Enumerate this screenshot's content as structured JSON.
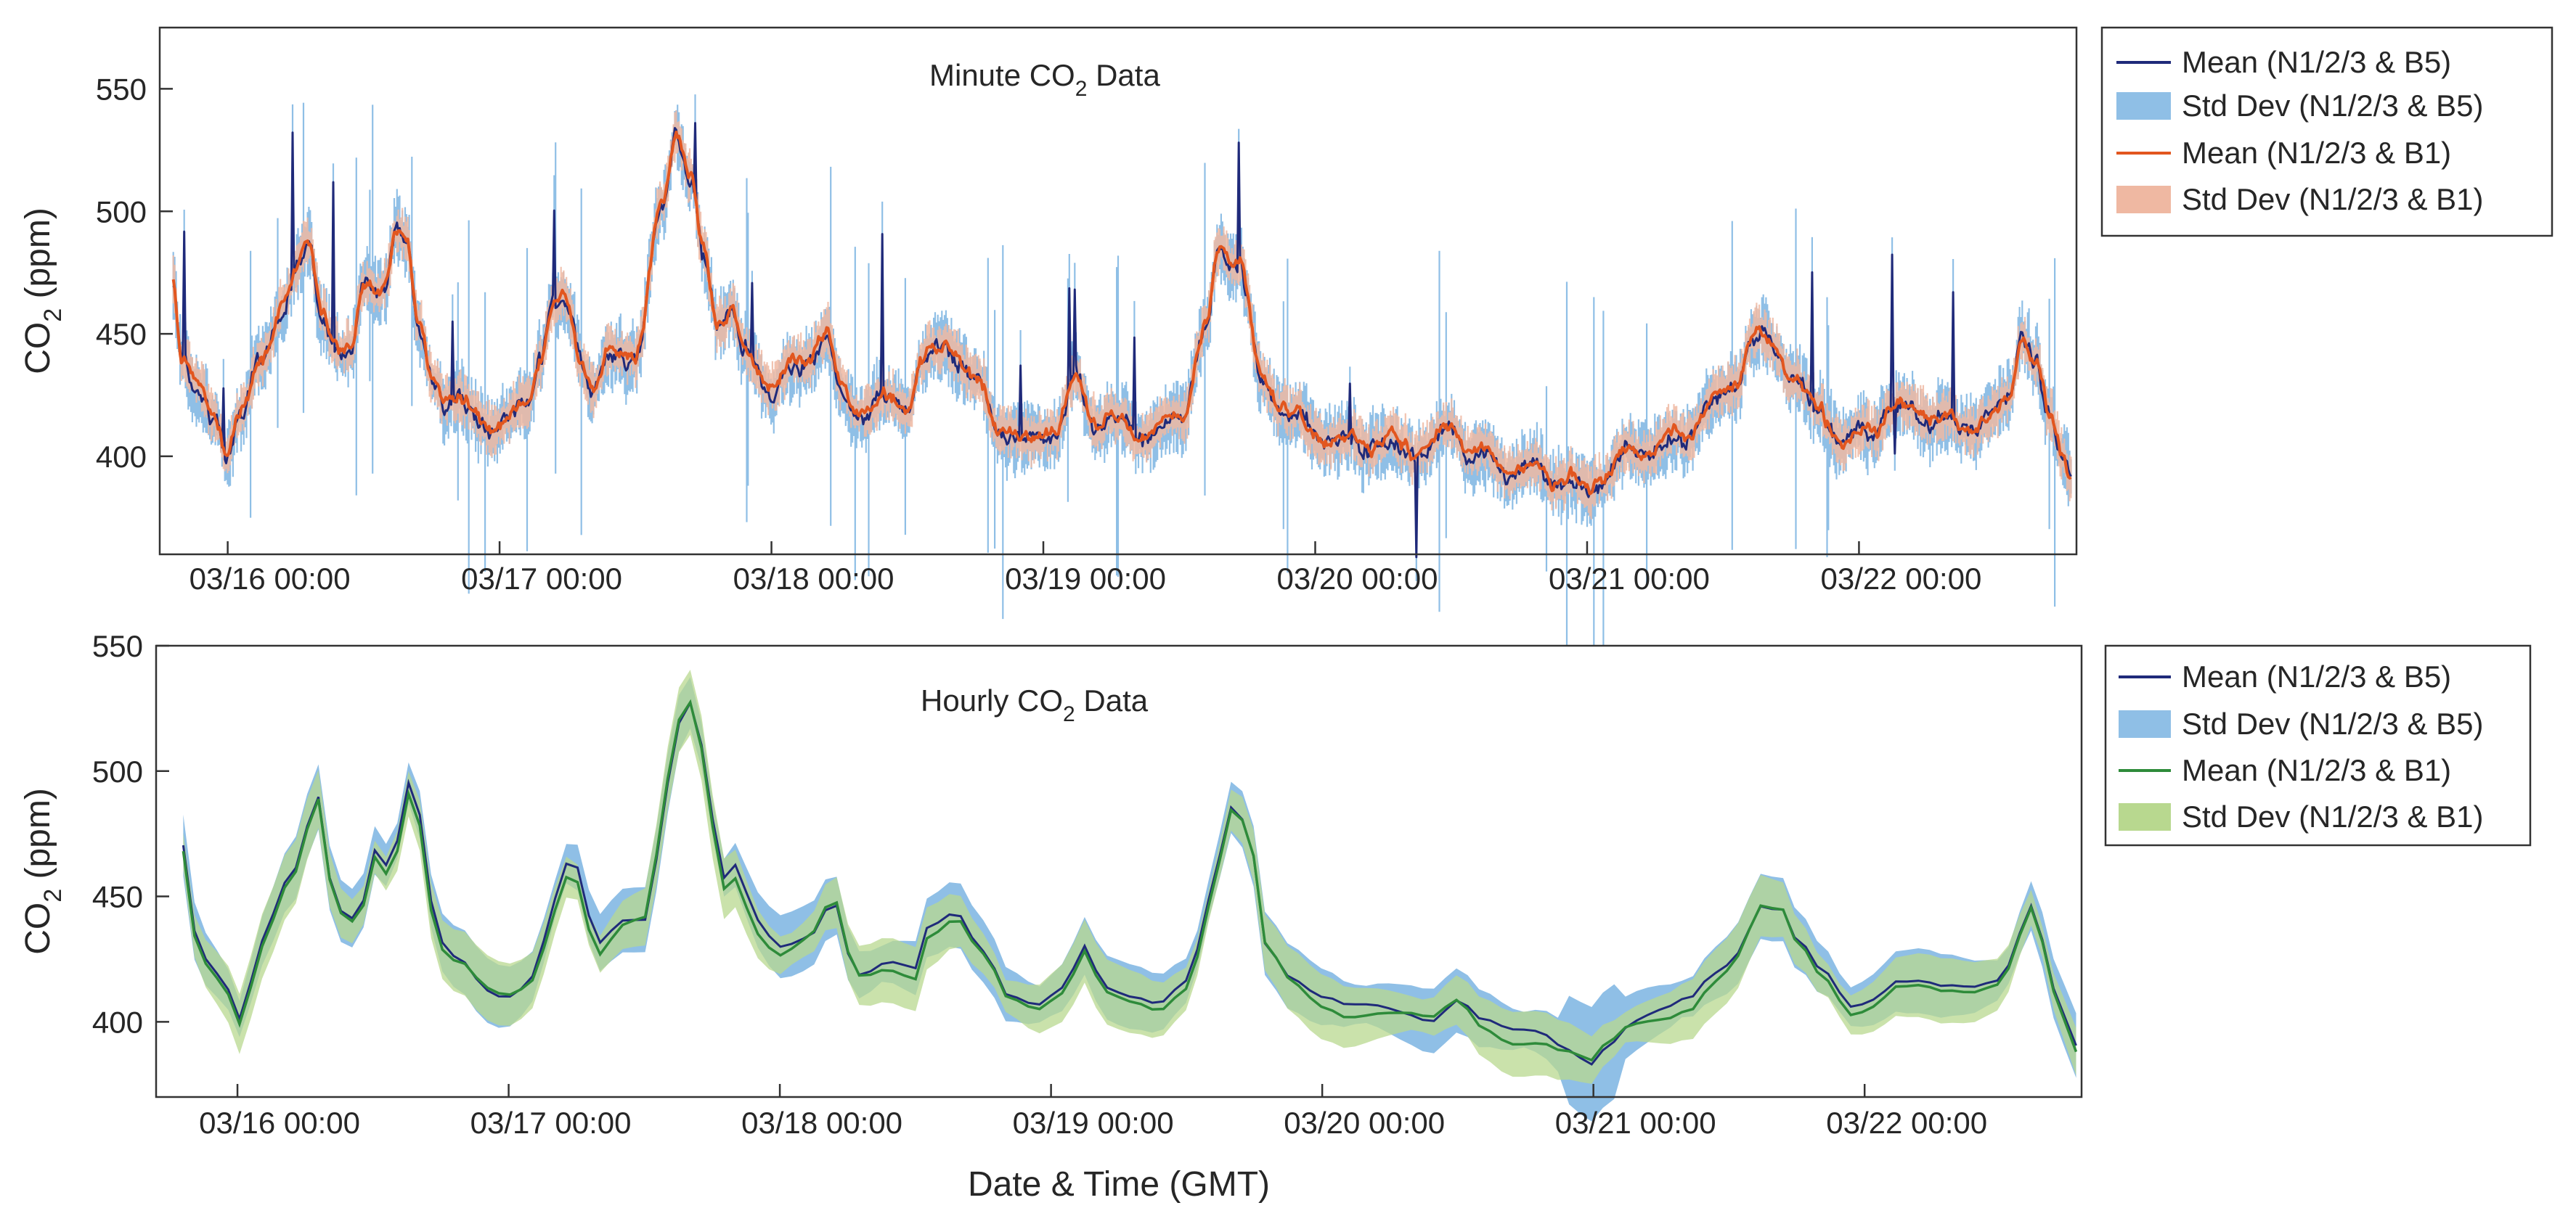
{
  "chart_data": [
    {
      "type": "line",
      "title": "Minute CO₂ Data",
      "title_main": "Minute CO",
      "title_sub": "2",
      "title_tail": " Data",
      "xlabel": "",
      "ylabel": "CO₂ (ppm)",
      "ylabel_main": "CO",
      "ylabel_sub": "2",
      "ylabel_tail": " (ppm)",
      "ylim": [
        360,
        575
      ],
      "xlim": [
        -0.25,
        6.8
      ],
      "y_ticks": [
        400,
        450,
        500,
        550
      ],
      "y_tick_labels": [
        "400",
        "450",
        "500",
        "550"
      ],
      "x_ticks": [
        0,
        1,
        2,
        3,
        4,
        5,
        6
      ],
      "x_tick_labels": [
        "03/16 00:00",
        "03/17 00:00",
        "03/18 00:00",
        "03/19 00:00",
        "03/20 00:00",
        "03/21 00:00",
        "03/22 00:00"
      ],
      "x_units": "days since 03/16 00:00 (GMT)",
      "legend_position": "outside-right",
      "series": [
        {
          "name": "Mean (N1/2/3 & B5)",
          "kind": "line",
          "color": "#1f2a7a",
          "ref": "b5"
        },
        {
          "name": "Std Dev (N1/2/3 & B5)",
          "kind": "band",
          "color": "#8fbfe6",
          "ref": "b5"
        },
        {
          "name": "Mean (N1/2/3 & B1)",
          "kind": "line",
          "color": "#e2561f",
          "ref": "b1"
        },
        {
          "name": "Std Dev (N1/2/3 & B1)",
          "kind": "band",
          "color": "#efb8a2",
          "ref": "b1"
        }
      ],
      "resolution": "minute",
      "style": {
        "b5_line": "#1f2a7a",
        "b5_band": "#8fbfe6",
        "b1_line": "#e2561f",
        "b1_band": "#efb8a2"
      }
    },
    {
      "type": "line",
      "title": "Hourly CO₂ Data",
      "title_main": "Hourly CO",
      "title_sub": "2",
      "title_tail": " Data",
      "xlabel": "Date & Time (GMT)",
      "ylabel": "CO₂ (ppm)",
      "ylabel_main": "CO",
      "ylabel_sub": "2",
      "ylabel_tail": " (ppm)",
      "ylim": [
        370,
        550
      ],
      "xlim": [
        -0.3,
        6.8
      ],
      "y_ticks": [
        400,
        450,
        500,
        550
      ],
      "y_tick_labels": [
        "400",
        "450",
        "500",
        "550"
      ],
      "x_ticks": [
        0,
        1,
        2,
        3,
        4,
        5,
        6
      ],
      "x_tick_labels": [
        "03/16 00:00",
        "03/17 00:00",
        "03/18 00:00",
        "03/19 00:00",
        "03/20 00:00",
        "03/21 00:00",
        "03/22 00:00"
      ],
      "x_units": "days since 03/16 00:00 (GMT)",
      "legend_position": "outside-right",
      "series": [
        {
          "name": "Mean (N1/2/3 & B5)",
          "kind": "line",
          "color": "#1f2a7a",
          "ref": "b5"
        },
        {
          "name": "Std Dev (N1/2/3 & B5)",
          "kind": "band",
          "color": "#8fbfe6",
          "ref": "b5"
        },
        {
          "name": "Mean (N1/2/3 & B1)",
          "kind": "line",
          "color": "#2e8b3a",
          "ref": "b1"
        },
        {
          "name": "Std Dev (N1/2/3 & B1)",
          "kind": "band",
          "color": "#b8d88f",
          "ref": "b1"
        }
      ],
      "resolution": "hourly",
      "style": {
        "b5_line": "#1f2a7a",
        "b5_band": "#8fbfe6",
        "b1_line": "#2e8b3a",
        "b1_band": "#b8d88f"
      }
    }
  ],
  "mean_profile": [
    [
      -0.2,
      472
    ],
    [
      -0.17,
      440
    ],
    [
      -0.12,
      427
    ],
    [
      -0.05,
      418
    ],
    [
      0.0,
      400
    ],
    [
      0.05,
      415
    ],
    [
      0.12,
      440
    ],
    [
      0.2,
      458
    ],
    [
      0.3,
      490
    ],
    [
      0.35,
      455
    ],
    [
      0.4,
      442
    ],
    [
      0.45,
      445
    ],
    [
      0.5,
      470
    ],
    [
      0.55,
      463
    ],
    [
      0.58,
      468
    ],
    [
      0.62,
      495
    ],
    [
      0.66,
      490
    ],
    [
      0.7,
      450
    ],
    [
      0.75,
      430
    ],
    [
      0.8,
      425
    ],
    [
      0.85,
      423
    ],
    [
      0.9,
      415
    ],
    [
      0.95,
      412
    ],
    [
      1.0,
      412
    ],
    [
      1.05,
      415
    ],
    [
      1.1,
      420
    ],
    [
      1.15,
      440
    ],
    [
      1.2,
      462
    ],
    [
      1.25,
      460
    ],
    [
      1.3,
      440
    ],
    [
      1.35,
      428
    ],
    [
      1.4,
      440
    ],
    [
      1.5,
      442
    ],
    [
      1.6,
      500
    ],
    [
      1.65,
      535
    ],
    [
      1.7,
      515
    ],
    [
      1.75,
      480
    ],
    [
      1.8,
      455
    ],
    [
      1.85,
      462
    ],
    [
      1.9,
      440
    ],
    [
      2.0,
      430
    ],
    [
      2.1,
      435
    ],
    [
      2.2,
      450
    ],
    [
      2.25,
      428
    ],
    [
      2.3,
      418
    ],
    [
      2.4,
      422
    ],
    [
      2.5,
      420
    ],
    [
      2.55,
      438
    ],
    [
      2.65,
      445
    ],
    [
      2.75,
      430
    ],
    [
      2.85,
      410
    ],
    [
      2.95,
      405
    ],
    [
      3.05,
      412
    ],
    [
      3.12,
      430
    ],
    [
      3.2,
      415
    ],
    [
      3.3,
      412
    ],
    [
      3.4,
      408
    ],
    [
      3.5,
      415
    ],
    [
      3.6,
      450
    ],
    [
      3.65,
      485
    ],
    [
      3.72,
      480
    ],
    [
      3.8,
      430
    ],
    [
      3.9,
      418
    ],
    [
      4.0,
      410
    ],
    [
      4.1,
      405
    ],
    [
      4.2,
      405
    ],
    [
      4.3,
      404
    ],
    [
      4.4,
      402
    ],
    [
      4.5,
      410
    ],
    [
      4.6,
      400
    ],
    [
      4.7,
      395
    ],
    [
      4.8,
      395
    ],
    [
      4.9,
      390
    ],
    [
      5.0,
      385
    ],
    [
      5.05,
      392
    ],
    [
      5.15,
      400
    ],
    [
      5.25,
      403
    ],
    [
      5.35,
      408
    ],
    [
      5.45,
      420
    ],
    [
      5.55,
      430
    ],
    [
      5.6,
      448
    ],
    [
      5.7,
      445
    ],
    [
      5.75,
      432
    ],
    [
      5.85,
      418
    ],
    [
      5.95,
      405
    ],
    [
      6.05,
      410
    ],
    [
      6.1,
      418
    ],
    [
      6.2,
      418
    ],
    [
      6.3,
      414
    ],
    [
      6.4,
      412
    ],
    [
      6.5,
      415
    ],
    [
      6.55,
      425
    ],
    [
      6.6,
      450
    ],
    [
      6.65,
      435
    ],
    [
      6.7,
      415
    ],
    [
      6.75,
      402
    ],
    [
      6.78,
      392
    ]
  ]
}
